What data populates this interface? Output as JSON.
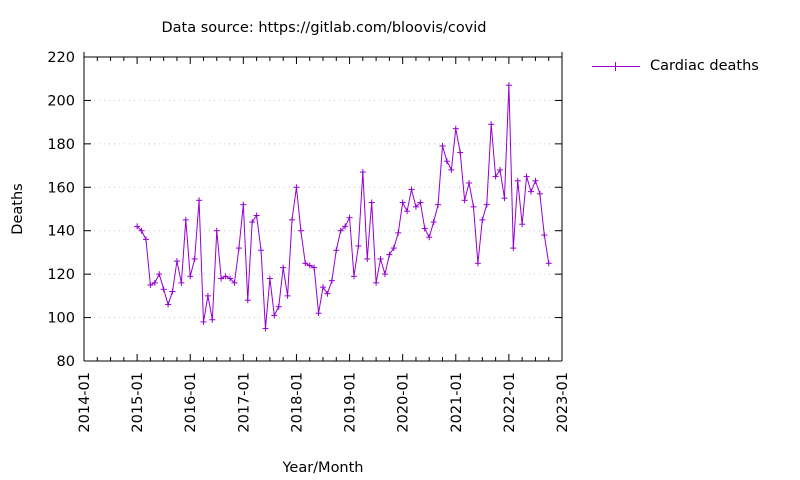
{
  "chart_data": {
    "type": "line",
    "title": "Data source: https://gitlab.com/bloovis/covid",
    "xlabel": "Year/Month",
    "ylabel": "Deaths",
    "ylim": [
      80,
      220
    ],
    "yticks": [
      80,
      100,
      120,
      140,
      160,
      180,
      200,
      220
    ],
    "xlim": [
      "2014-01",
      "2023-01"
    ],
    "xticks": [
      "2014-01",
      "2015-01",
      "2016-01",
      "2017-01",
      "2018-01",
      "2019-01",
      "2020-01",
      "2021-01",
      "2022-01",
      "2023-01"
    ],
    "grid": "horizontal dotted at y ticks",
    "legend_position": "outside top-right",
    "series": [
      {
        "name": "Cardiac deaths",
        "color": "#9400d3",
        "marker": "+",
        "start": "2015-01",
        "frequency": "monthly",
        "values": [
          142,
          140,
          136,
          115,
          116,
          120,
          113,
          106,
          112,
          126,
          116,
          145,
          119,
          127,
          154,
          98,
          110,
          99,
          140,
          118,
          119,
          118,
          116,
          132,
          152,
          108,
          144,
          147,
          131,
          95,
          118,
          101,
          105,
          123,
          110,
          145,
          160,
          140,
          125,
          124,
          123,
          102,
          114,
          111,
          117,
          131,
          140,
          142,
          146,
          119,
          133,
          167,
          127,
          153,
          116,
          127,
          120,
          129,
          132,
          139,
          153,
          149,
          159,
          151,
          153,
          141,
          137,
          144,
          152,
          179,
          172,
          168,
          187,
          176,
          154,
          162,
          151,
          125,
          145,
          152,
          189,
          165,
          168,
          155,
          207,
          132,
          163,
          143,
          165,
          158,
          163,
          157,
          138,
          125
        ]
      }
    ]
  },
  "legend": {
    "label": "Cardiac deaths"
  }
}
